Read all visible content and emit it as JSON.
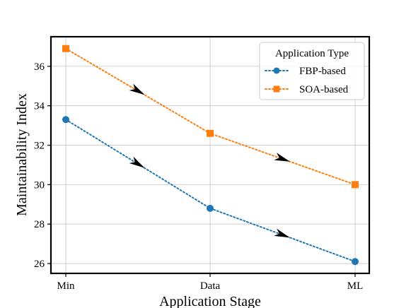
{
  "chart_data": {
    "type": "line",
    "categories": [
      "Min",
      "Data",
      "ML"
    ],
    "series": [
      {
        "name": "FBP-based",
        "values": [
          33.3,
          28.8,
          26.1
        ],
        "color": "#1f77b4",
        "marker": "circle",
        "linestyle": "dotted"
      },
      {
        "name": "SOA-based",
        "values": [
          36.9,
          32.6,
          30.0
        ],
        "color": "#ff7f0e",
        "marker": "square",
        "linestyle": "dotted"
      }
    ],
    "xlabel": "Application Stage",
    "ylabel": "Maintainability Index",
    "ylim": [
      25.5,
      37.5
    ],
    "yticks": [
      26,
      28,
      30,
      32,
      34,
      36
    ],
    "grid": true,
    "legend": {
      "title": "Application Type",
      "placement": "top-right"
    },
    "annotations": "black arrowheads at segment midpoints indicating direction of decrease"
  }
}
